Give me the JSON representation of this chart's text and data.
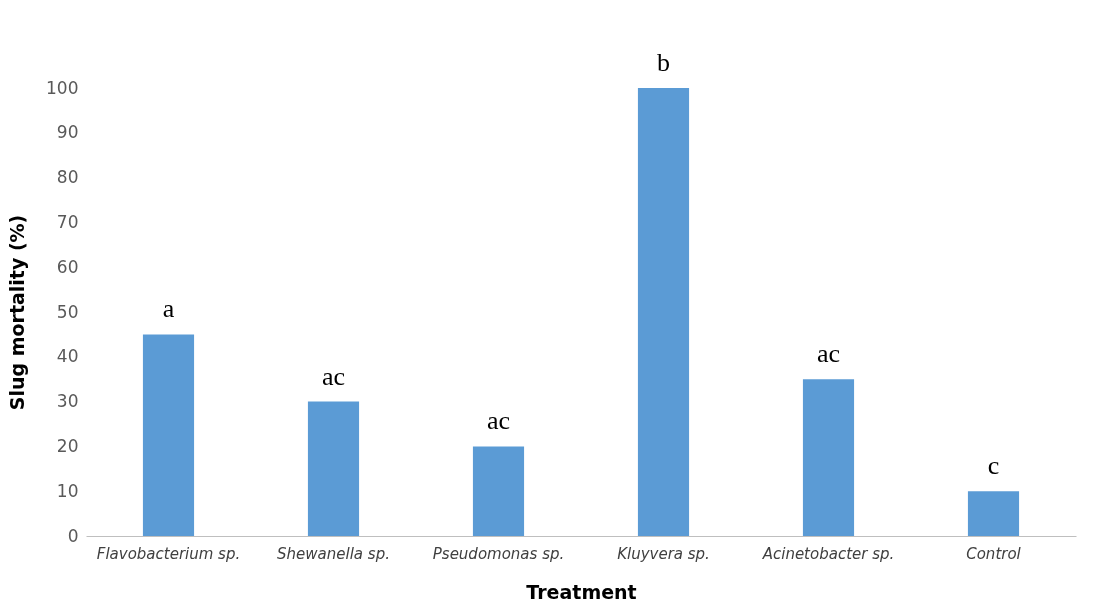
{
  "chart_data": {
    "type": "bar",
    "xlabel": "Treatment",
    "ylabel": "Slug mortality (%)",
    "categories": [
      "Flavobacterium sp.",
      "Shewanella sp.",
      "Pseudomonas sp.",
      "Kluyvera sp.",
      "Acinetobacter sp.",
      "Control"
    ],
    "values": [
      45,
      30,
      20,
      100,
      35,
      10
    ],
    "color": "#5b9bd5",
    "ylim": [
      0,
      100
    ],
    "yticks": [
      0,
      10,
      20,
      30,
      40,
      50,
      60,
      70,
      80,
      90,
      100
    ],
    "grid": false,
    "annotations": [
      {
        "text": "a",
        "x": "Flavobacterium sp.",
        "y": 45
      },
      {
        "text": "ac",
        "x": "Shewanella sp.",
        "y": 30
      },
      {
        "text": "ac",
        "x": "Pseudomonas sp.",
        "y": 20
      },
      {
        "text": "b",
        "x": "Kluyvera sp.",
        "y": 100
      },
      {
        "text": "ac",
        "x": "Acinetobacter sp.",
        "y": 35
      },
      {
        "text": "c",
        "x": "Control",
        "y": 10
      }
    ]
  }
}
